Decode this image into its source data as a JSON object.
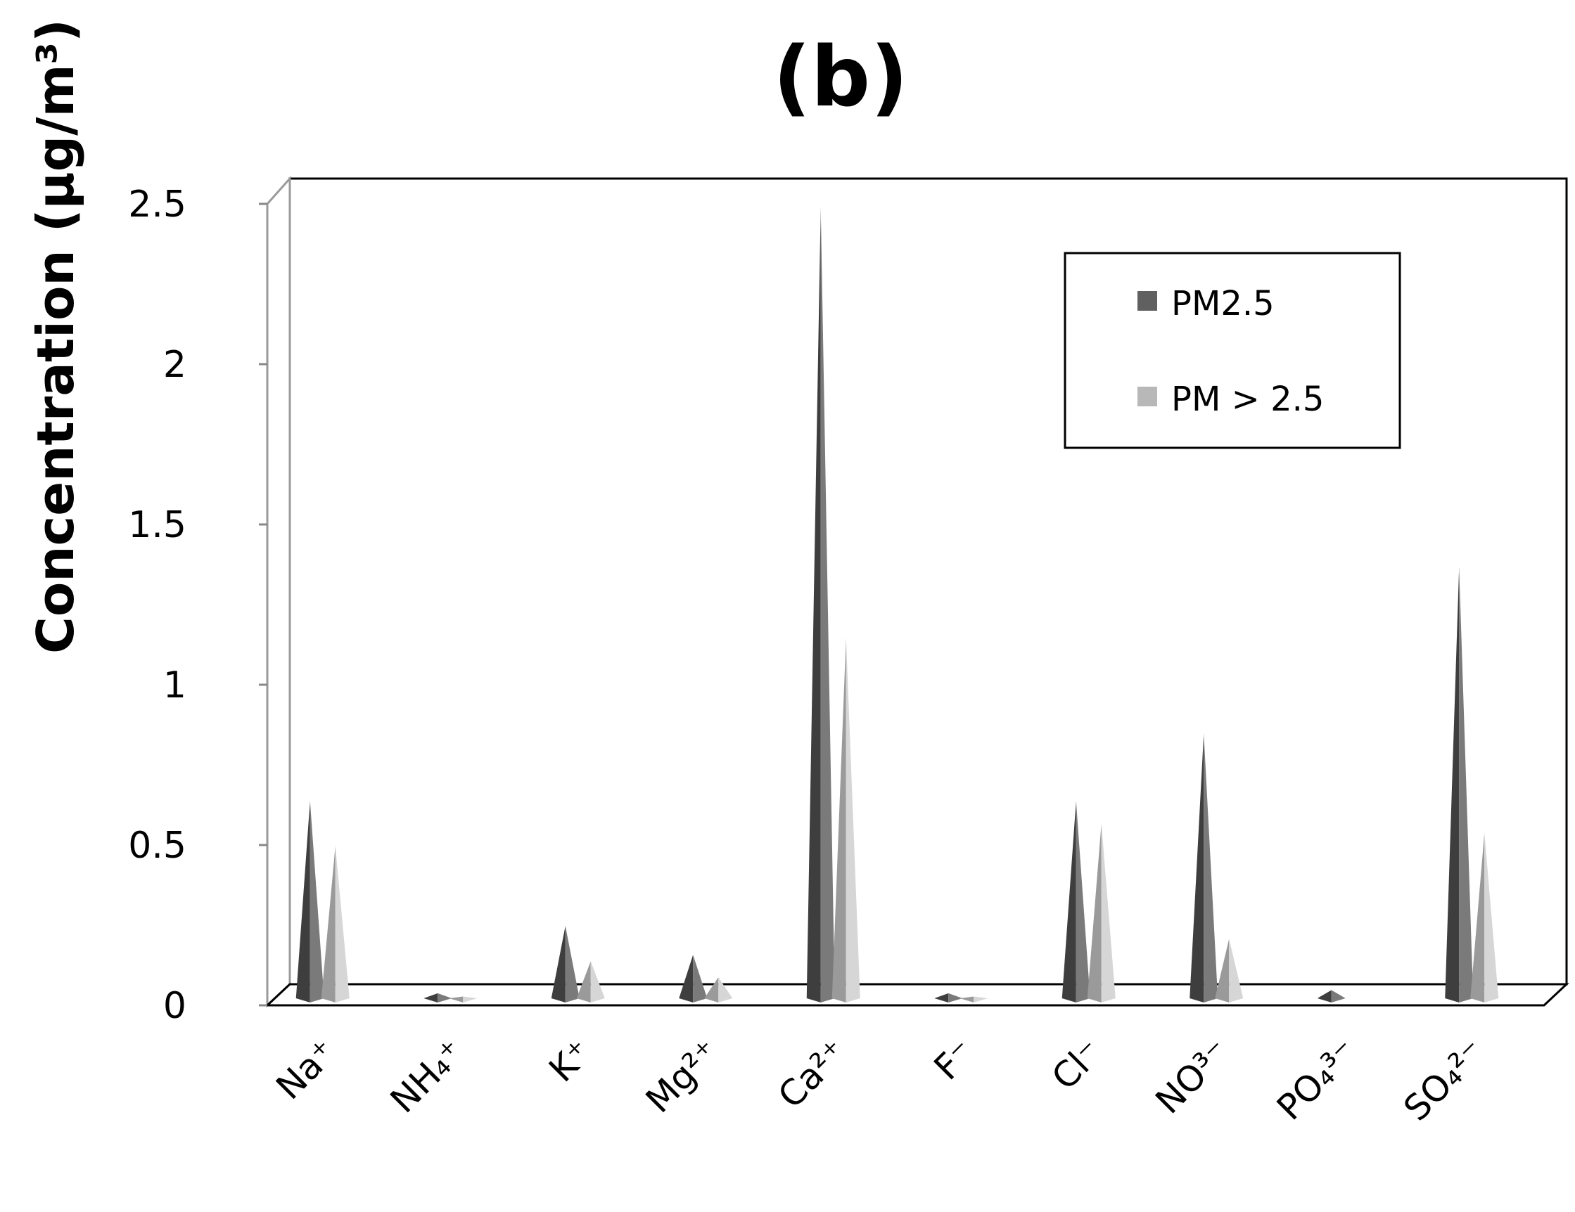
{
  "chart_data": {
    "type": "bar",
    "title": "(b)",
    "xlabel": "",
    "ylabel": "Concentration (µg/m³)",
    "ylim": [
      0,
      2.5
    ],
    "yticks": [
      "0",
      "0.5",
      "1",
      "1.5",
      "2",
      "2.5"
    ],
    "categories": [
      "Na⁺",
      "NH₄⁺",
      "K⁺",
      "Mg²⁺",
      "Ca²⁺",
      "F⁻",
      "Cl⁻",
      "NO³⁻",
      "PO₄³⁻",
      "SO₄²⁻"
    ],
    "series": [
      {
        "name": "PM2.5",
        "color": "#606060",
        "values": [
          0.62,
          0.02,
          0.23,
          0.14,
          2.47,
          0.02,
          0.62,
          0.83,
          0.03,
          1.35
        ]
      },
      {
        "name": "PM > 2.5",
        "color": "#b8b8b8",
        "values": [
          0.48,
          0.01,
          0.12,
          0.07,
          1.13,
          0.01,
          0.55,
          0.19,
          0.0,
          0.52
        ]
      }
    ],
    "grid": false,
    "legend_position": "top-right",
    "bar_shape": "3d-cone"
  }
}
